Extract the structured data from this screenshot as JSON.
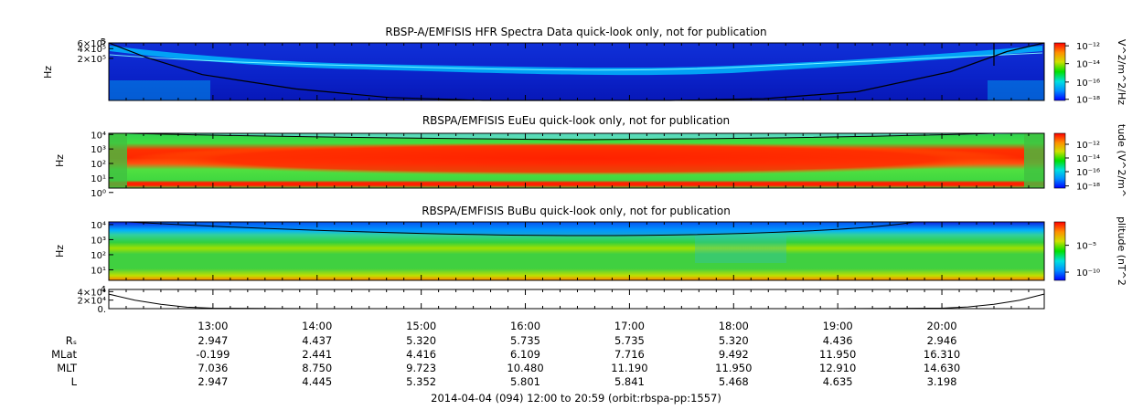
{
  "chart_data": [
    {
      "type": "heatmap",
      "title": "RBSP-A/EMFISIS  HFR Spectra Data quick-look only, not for publication",
      "ylabel": "Hz",
      "ylim": [
        10000,
        600000
      ],
      "yscale": "log",
      "yticks": [
        {
          "value": 600000,
          "label": "6×10⁵"
        },
        {
          "value": 400000,
          "label": "4×10⁵"
        },
        {
          "value": 200000,
          "label": "2×10⁵"
        }
      ],
      "top_label": "5",
      "colorbar": {
        "label": "V^2/m^2/Hz",
        "ticks": [
          {
            "label": "10⁻¹²",
            "frac": 0.95
          },
          {
            "label": "10⁻¹⁴",
            "frac": 0.64
          },
          {
            "label": "10⁻¹⁶",
            "frac": 0.32
          },
          {
            "label": "10⁻¹⁸",
            "frac": 0.02
          }
        ]
      },
      "curve": [
        [
          0,
          0.0
        ],
        [
          0.04,
          0.25
        ],
        [
          0.1,
          0.55
        ],
        [
          0.2,
          0.8
        ],
        [
          0.3,
          0.95
        ],
        [
          0.4,
          1.0
        ],
        [
          0.6,
          1.0
        ],
        [
          0.7,
          0.97
        ],
        [
          0.8,
          0.85
        ],
        [
          0.9,
          0.5
        ],
        [
          0.96,
          0.15
        ],
        [
          1,
          0.0
        ]
      ]
    },
    {
      "type": "heatmap",
      "title": "RBSPA/EMFISIS  EuEu quick-look only, not for publication",
      "ylabel": "Hz",
      "ylim": [
        2,
        12000
      ],
      "yscale": "log",
      "yticks": [
        {
          "value": 10000,
          "label": "10⁴"
        },
        {
          "value": 1000,
          "label": "10³"
        },
        {
          "value": 100,
          "label": "10²"
        },
        {
          "value": 10,
          "label": "10¹"
        },
        {
          "value": 1,
          "label": "10⁰"
        }
      ],
      "colorbar": {
        "label": "tude (V^2/m^",
        "ticks": [
          {
            "label": "10⁻¹²",
            "frac": 0.8
          },
          {
            "label": "10⁻¹⁴",
            "frac": 0.55
          },
          {
            "label": "10⁻¹⁶",
            "frac": 0.3
          },
          {
            "label": "10⁻¹⁸",
            "frac": 0.04
          }
        ]
      }
    },
    {
      "type": "heatmap",
      "title": "RBSPA/EMFISIS  BuBu quick-look only, not for publication",
      "ylabel": "Hz",
      "ylim": [
        2,
        15000
      ],
      "yscale": "log",
      "yticks": [
        {
          "value": 10000,
          "label": "10⁴"
        },
        {
          "value": 1000,
          "label": "10³"
        },
        {
          "value": 100,
          "label": "10²"
        },
        {
          "value": 10,
          "label": "10¹"
        }
      ],
      "colorbar": {
        "label": "plitude (nT^2",
        "ticks": [
          {
            "label": "10⁻⁵",
            "frac": 0.6
          },
          {
            "label": "10⁻¹⁰",
            "frac": 0.14
          }
        ]
      }
    },
    {
      "type": "line",
      "yticks": [
        {
          "value": 40000,
          "label": "4×10⁴"
        },
        {
          "value": 20000,
          "label": "2×10⁴"
        },
        {
          "value": 0,
          "label": "0."
        }
      ],
      "top_label": "4",
      "ylim": [
        0,
        45000
      ],
      "x": [
        12.0,
        12.25,
        12.5,
        12.75,
        13.0,
        14,
        15,
        16,
        17,
        18,
        19,
        20.0,
        20.25,
        20.5,
        20.75,
        20.98
      ],
      "y": [
        34000,
        20000,
        10000,
        3500,
        1000,
        0,
        0,
        0,
        0,
        0,
        0,
        1000,
        4000,
        10000,
        20000,
        34000
      ]
    }
  ],
  "x_axis": {
    "start": 12.0,
    "end": 20.983,
    "ticks": [
      {
        "t": 13,
        "label": "13:00"
      },
      {
        "t": 14,
        "label": "14:00"
      },
      {
        "t": 15,
        "label": "15:00"
      },
      {
        "t": 16,
        "label": "16:00"
      },
      {
        "t": 17,
        "label": "17:00"
      },
      {
        "t": 18,
        "label": "18:00"
      },
      {
        "t": 19,
        "label": "19:00"
      },
      {
        "t": 20,
        "label": "20:00"
      }
    ]
  },
  "ephemeris": {
    "rows": [
      {
        "label": "Rₛ",
        "values": [
          "2.947",
          "4.437",
          "5.320",
          "5.735",
          "5.735",
          "5.320",
          "4.436",
          "2.946"
        ]
      },
      {
        "label": "MLat",
        "values": [
          "-0.199",
          "2.441",
          "4.416",
          "6.109",
          "7.716",
          "9.492",
          "11.950",
          "16.310"
        ]
      },
      {
        "label": "MLT",
        "values": [
          "7.036",
          "8.750",
          "9.723",
          "10.480",
          "11.190",
          "11.950",
          "12.910",
          "14.630"
        ]
      },
      {
        "label": "L",
        "values": [
          "2.947",
          "4.445",
          "5.352",
          "5.801",
          "5.841",
          "5.468",
          "4.635",
          "3.198"
        ]
      }
    ]
  },
  "footer": "2014-04-04 (094) 12:00 to 20:59 (orbit:rbspa-pp:1557)"
}
